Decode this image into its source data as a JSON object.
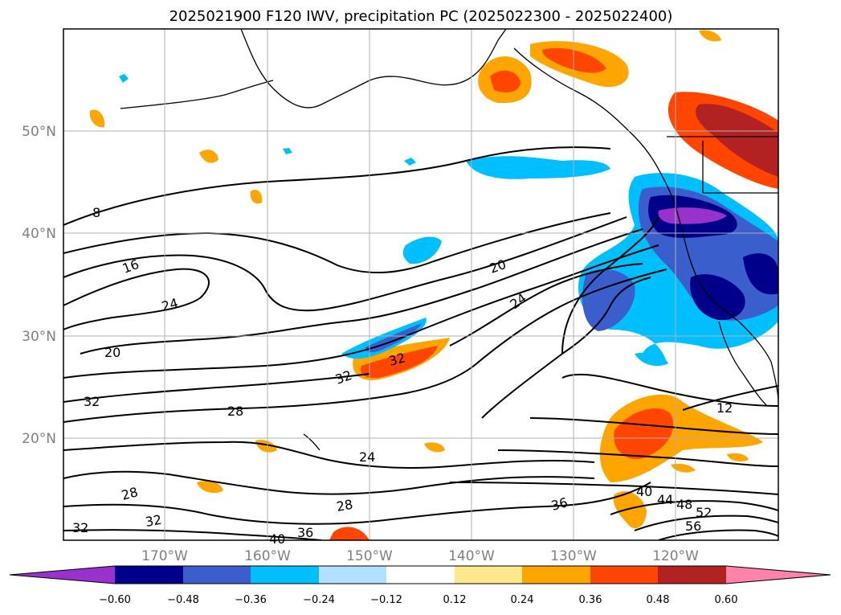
{
  "title": "2025021900 F120 IWV, precipitation PC (2025022300 - 2025022400)",
  "map": {
    "longitude_labels": [
      "170°W",
      "160°W",
      "150°W",
      "140°W",
      "130°W",
      "120°W"
    ],
    "latitude_labels": [
      "50°N",
      "40°N",
      "30°N",
      "20°N"
    ],
    "contour_labels": [
      "8",
      "16",
      "24",
      "20",
      "20",
      "24",
      "32",
      "32",
      "28",
      "24",
      "32",
      "28",
      "28",
      "32",
      "32",
      "40",
      "36",
      "36",
      "40",
      "44",
      "48",
      "52",
      "56",
      "12"
    ]
  },
  "colorbar": {
    "tick_labels": [
      "−0.60",
      "−0.48",
      "−0.36",
      "−0.24",
      "−0.12",
      "0.12",
      "0.24",
      "0.36",
      "0.48",
      "0.60"
    ],
    "colors": [
      "#9932cc",
      "#00008b",
      "#3a5fcd",
      "#00bfff",
      "#b0e2ff",
      "#ffffff",
      "#ffe88c",
      "#ffa500",
      "#ff4500",
      "#b22222",
      "#ff82ab"
    ]
  }
}
